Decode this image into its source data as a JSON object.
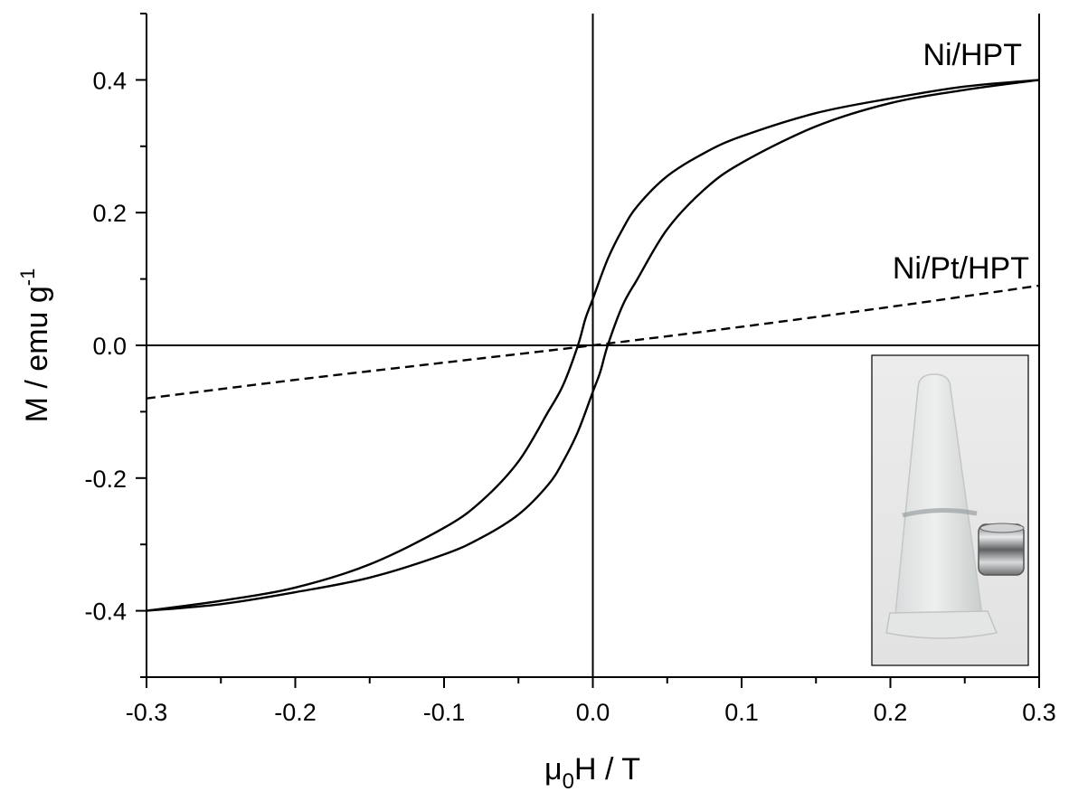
{
  "chart_data": {
    "type": "line",
    "xlabel": {
      "base": "μ",
      "sub": "0",
      "rest": "H / T"
    },
    "ylabel": {
      "main": "M / emu g",
      "sup": "-1"
    },
    "xlim": [
      -0.3,
      0.3
    ],
    "ylim": [
      -0.5,
      0.5
    ],
    "x_ticks": [
      -0.3,
      -0.2,
      -0.1,
      0.0,
      0.1,
      0.2,
      0.3
    ],
    "x_tick_labels": [
      "-0.3",
      "-0.2",
      "-0.1",
      "0.0",
      "0.1",
      "0.2",
      "0.3"
    ],
    "y_ticks": [
      -0.4,
      -0.2,
      0.0,
      0.2,
      0.4
    ],
    "y_tick_labels": [
      "-0.4",
      "-0.2",
      "0.0",
      "0.2",
      "0.4"
    ],
    "zero_lines": true,
    "grid": false,
    "series": [
      {
        "name": "Ni/HPT",
        "style": "solid",
        "color": "#000000",
        "branches": [
          {
            "x": [
              0.3,
              0.25,
              0.2,
              0.15,
              0.1,
              0.075,
              0.05,
              0.03,
              0.02,
              0.01,
              0.0,
              -0.005,
              -0.01,
              -0.02,
              -0.03,
              -0.05,
              -0.075,
              -0.1,
              -0.15,
              -0.2,
              -0.25,
              -0.3
            ],
            "y": [
              0.4,
              0.39,
              0.372,
              0.35,
              0.315,
              0.29,
              0.255,
              0.21,
              0.175,
              0.13,
              0.07,
              0.04,
              0.0,
              -0.06,
              -0.1,
              -0.175,
              -0.235,
              -0.275,
              -0.33,
              -0.365,
              -0.385,
              -0.4
            ]
          },
          {
            "x": [
              -0.3,
              -0.25,
              -0.2,
              -0.15,
              -0.1,
              -0.075,
              -0.05,
              -0.03,
              -0.02,
              -0.01,
              0.0,
              0.005,
              0.01,
              0.02,
              0.03,
              0.05,
              0.075,
              0.1,
              0.15,
              0.2,
              0.25,
              0.3
            ],
            "y": [
              -0.4,
              -0.39,
              -0.372,
              -0.35,
              -0.315,
              -0.29,
              -0.255,
              -0.21,
              -0.175,
              -0.13,
              -0.07,
              -0.04,
              0.0,
              0.06,
              0.1,
              0.175,
              0.235,
              0.275,
              0.33,
              0.365,
              0.385,
              0.4
            ]
          }
        ]
      },
      {
        "name": "Ni/Pt/HPT",
        "style": "dashed",
        "color": "#000000",
        "branches": [
          {
            "x": [
              -0.3,
              -0.2,
              -0.1,
              0.0,
              0.1,
              0.2,
              0.3
            ],
            "y": [
              -0.08,
              -0.052,
              -0.026,
              0.0,
              0.028,
              0.058,
              0.09
            ]
          }
        ]
      }
    ],
    "inset": {
      "kind": "photo",
      "subject": "vial-with-magnet",
      "position": "bottom-right"
    }
  }
}
